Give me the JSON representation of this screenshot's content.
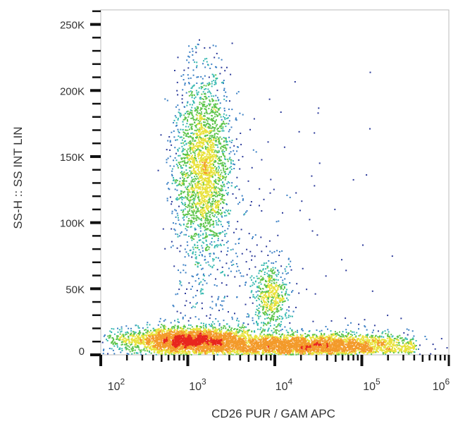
{
  "chart_data": {
    "type": "scatter",
    "style": "density pseudocolor dot plot",
    "xlabel": "CD26 PUR / GAM APC",
    "ylabel": "SS-H :: SS INT LIN",
    "x_scale": "log",
    "xlim": [
      100,
      1000000
    ],
    "ylim": [
      0,
      261000
    ],
    "x_ticks": [
      {
        "value": 100,
        "base": "10",
        "exp": "2"
      },
      {
        "value": 1000,
        "base": "10",
        "exp": "3"
      },
      {
        "value": 10000,
        "base": "10",
        "exp": "4"
      },
      {
        "value": 100000,
        "base": "10",
        "exp": "5"
      },
      {
        "value": 1000000,
        "base": "10",
        "exp": "6"
      }
    ],
    "y_ticks": [
      {
        "value": 0,
        "label": "0"
      },
      {
        "value": 50000,
        "label": "50K"
      },
      {
        "value": 100000,
        "label": "100K"
      },
      {
        "value": 150000,
        "label": "150K"
      },
      {
        "value": 200000,
        "label": "200K"
      },
      {
        "value": 250000,
        "label": "250K"
      }
    ],
    "grid": false,
    "density_colors": [
      "#2b3a9a",
      "#3a7fc4",
      "#36b8b0",
      "#5cc44a",
      "#e8e23a",
      "#f39a2a",
      "#e8261e"
    ],
    "populations": [
      {
        "x_center": 1000,
        "y_center": 12000,
        "x_spread_decades": 0.35,
        "y_spread": 5000,
        "density": "high"
      },
      {
        "x_center": 25000,
        "y_center": 8000,
        "x_spread_decades": 0.45,
        "y_spread": 4000,
        "density": "high"
      },
      {
        "x_center": 1500,
        "y_center": 145000,
        "x_spread_decades": 0.16,
        "y_spread": 35000,
        "density": "medium"
      },
      {
        "x_center": 9000,
        "y_center": 45000,
        "x_spread_decades": 0.1,
        "y_spread": 13000,
        "density": "medium"
      }
    ]
  }
}
